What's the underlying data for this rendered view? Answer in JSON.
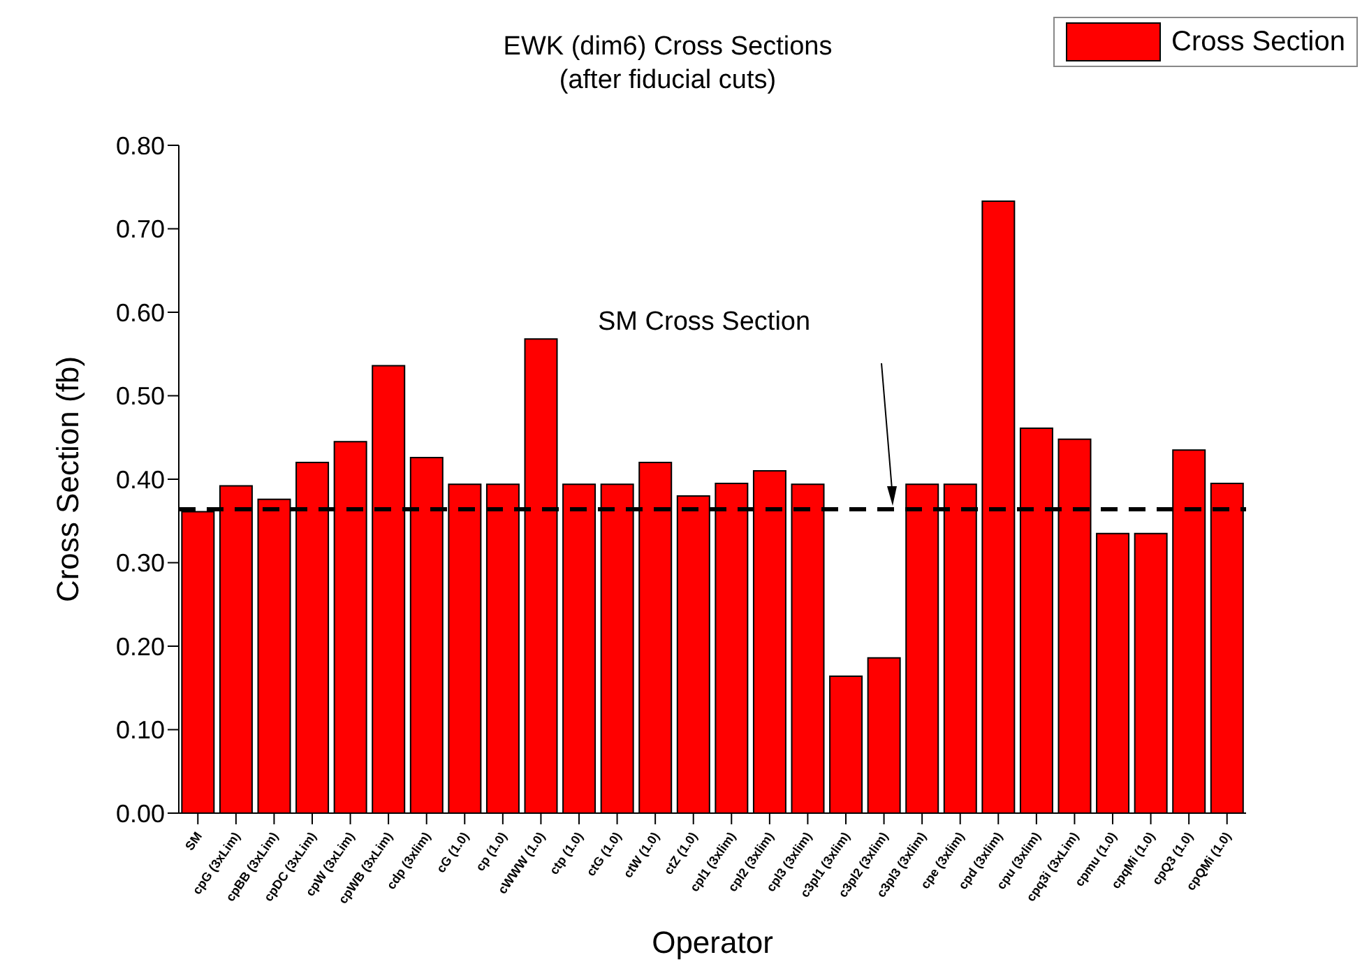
{
  "chart_data": {
    "type": "bar",
    "title": "EWK (dim6) Cross Sections\n(after fiducial cuts)",
    "xlabel": "Operator",
    "ylabel": "Cross Section (fb)",
    "categories": [
      "SM",
      "cpG (3xLim)",
      "cpBB (3xLim)",
      "cpDC (3xLim)",
      "cpW (3xLim)",
      "cpWB (3xLim)",
      "cdp (3xlim)",
      "cG (1.0)",
      "cp (1.0)",
      "cWWW (1.0)",
      "ctp (1.0)",
      "ctG (1.0)",
      "ctW (1.0)",
      "ctZ (1.0)",
      "cpl1 (3xlim)",
      "cpl2 (3xlim)",
      "cpl3 (3xlim)",
      "c3pl1 (3xlim)",
      "c3pl2 (3xlim)",
      "c3pl3 (3xlim)",
      "cpe (3xlim)",
      "cpd (3xlim)",
      "cpu (3xlim)",
      "cpq3i (3xLim)",
      "cpmu (1.0)",
      "cpqMi (1.0)",
      "cpQ3 (1.0)",
      "cpQMi (1.0)"
    ],
    "series": [
      {
        "name": "Cross Section",
        "color": "#ff0000",
        "values": [
          0.361,
          0.392,
          0.376,
          0.42,
          0.445,
          0.536,
          0.426,
          0.394,
          0.394,
          0.568,
          0.394,
          0.394,
          0.42,
          0.38,
          0.395,
          0.41,
          0.394,
          0.164,
          0.186,
          0.394,
          0.394,
          0.733,
          0.461,
          0.448,
          0.335,
          0.335,
          0.435,
          0.395
        ]
      }
    ],
    "ylim": [
      0,
      0.8
    ],
    "yticks": [
      {
        "value": 0,
        "label": "0.00"
      },
      {
        "value": 0.1,
        "label": "0.10"
      },
      {
        "value": 0.2,
        "label": "0.20"
      },
      {
        "value": 0.3,
        "label": "0.30"
      },
      {
        "value": 0.4,
        "label": "0.40"
      },
      {
        "value": 0.5,
        "label": "0.50"
      },
      {
        "value": 0.6,
        "label": "0.60"
      },
      {
        "value": 0.7,
        "label": "0.70"
      },
      {
        "value": 0.8,
        "label": "0.80"
      }
    ],
    "ref_lines": [
      {
        "axis": "y",
        "value": 0.364,
        "color": "#000000",
        "line_style": "dashed"
      }
    ],
    "annotations": [
      "SM Cross Section"
    ],
    "grid": false,
    "legend": "top right"
  }
}
